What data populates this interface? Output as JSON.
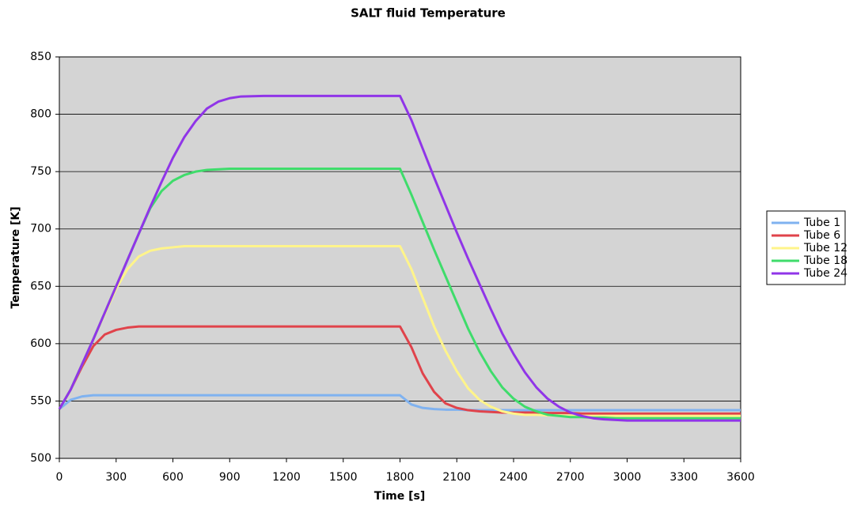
{
  "chart_data": {
    "type": "line",
    "title": "SALT fluid Temperature",
    "x_label": "Time [s]",
    "y_label": "Temperature [K]",
    "x": [
      0,
      60,
      120,
      180,
      240,
      300,
      360,
      420,
      480,
      540,
      600,
      660,
      720,
      780,
      840,
      900,
      960,
      1080,
      1200,
      1500,
      1800,
      1860,
      1920,
      1980,
      2040,
      2100,
      2160,
      2220,
      2280,
      2340,
      2400,
      2460,
      2520,
      2580,
      2640,
      2700,
      2760,
      2820,
      2880,
      2940,
      3000,
      3300,
      3600
    ],
    "series": [
      {
        "name": "Tube 1",
        "color": "#7fb2f0",
        "values": [
          543,
          551,
          554,
          555,
          555,
          555,
          555,
          555,
          555,
          555,
          555,
          555,
          555,
          555,
          555,
          555,
          555,
          555,
          555,
          555,
          555,
          547,
          544,
          543,
          542.5,
          542.5,
          542,
          542,
          542,
          542,
          542,
          542,
          542,
          542,
          542,
          542,
          542,
          542,
          542,
          542,
          542,
          542,
          542
        ]
      },
      {
        "name": "Tube 6",
        "color": "#e0434b",
        "values": [
          543,
          560,
          580,
          598,
          608,
          612,
          614,
          615,
          615,
          615,
          615,
          615,
          615,
          615,
          615,
          615,
          615,
          615,
          615,
          615,
          615,
          597,
          574,
          558,
          548,
          544,
          542,
          541,
          540.5,
          540,
          540,
          540,
          540,
          539.5,
          539.5,
          539.5,
          539,
          539,
          539,
          539,
          539,
          539,
          539
        ]
      },
      {
        "name": "Tube 12",
        "color": "#fff48a",
        "values": [
          543,
          560,
          582,
          604,
          626,
          648,
          665,
          676,
          681,
          683,
          684,
          685,
          685,
          685,
          685,
          685,
          685,
          685,
          685,
          685,
          685,
          665,
          640,
          615,
          594,
          576,
          561,
          551,
          545,
          541,
          539,
          538,
          538,
          537.5,
          537.5,
          537,
          537,
          537,
          537,
          537,
          537,
          537,
          537
        ]
      },
      {
        "name": "Tube 18",
        "color": "#3fdc6b",
        "values": [
          543,
          560,
          582,
          604,
          627,
          650,
          673,
          696,
          718,
          733,
          742,
          747,
          750,
          751.5,
          752,
          752.5,
          752.5,
          752.5,
          752.5,
          752.5,
          752.5,
          730,
          706,
          682,
          659,
          636,
          613,
          593,
          576,
          562,
          552,
          545,
          541,
          538,
          537,
          536,
          536,
          535.5,
          535.5,
          535,
          535,
          535,
          535
        ]
      },
      {
        "name": "Tube 24",
        "color": "#9035e8",
        "values": [
          543,
          560,
          582,
          604,
          627,
          650,
          673,
          696,
          719,
          741,
          762,
          780,
          794,
          805,
          811,
          814,
          815.5,
          816,
          816,
          816,
          816,
          795,
          770,
          745,
          721,
          697,
          674,
          652,
          630,
          609,
          591,
          575,
          562,
          552,
          545,
          540,
          537,
          535,
          534,
          533.5,
          533,
          533,
          533
        ]
      }
    ],
    "xlim": [
      0,
      3600
    ],
    "xticks": [
      0,
      300,
      600,
      900,
      1200,
      1500,
      1800,
      2100,
      2400,
      2700,
      3000,
      3300,
      3600
    ],
    "ylim": [
      500,
      850
    ],
    "yticks": [
      500,
      550,
      600,
      650,
      700,
      750,
      800,
      850
    ],
    "grid": true,
    "legend": "right"
  }
}
